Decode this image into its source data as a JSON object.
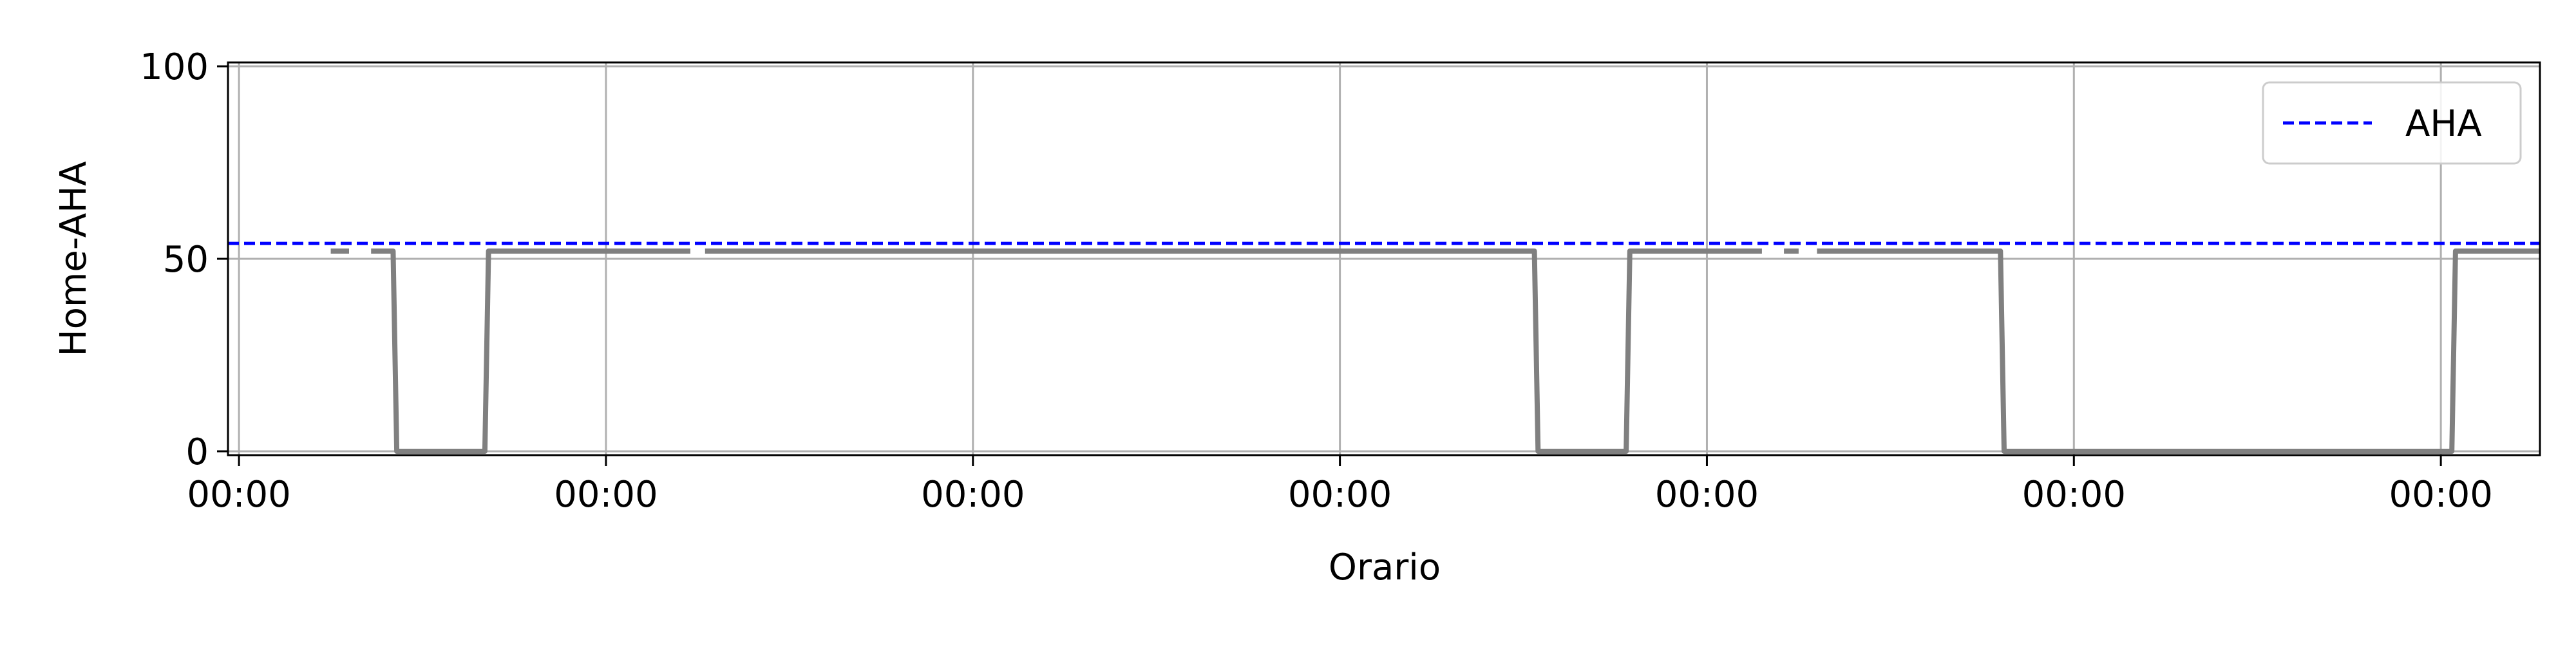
{
  "chart_data": {
    "type": "line",
    "xlabel": "Orario",
    "ylabel": "Home-AHA",
    "x_tick_labels": [
      "00:00",
      "00:00",
      "00:00",
      "00:00",
      "00:00",
      "00:00",
      "00:00"
    ],
    "y_ticks": [
      0,
      50,
      100
    ],
    "xlim": [
      -0.03,
      6.27
    ],
    "ylim": [
      -1,
      101
    ],
    "grid": true,
    "legend": {
      "position": "upper right",
      "entries": [
        "AHA"
      ]
    },
    "reference_lines": [
      {
        "name": "AHA",
        "y": 54,
        "style": "dashed",
        "color": "#0000ff"
      }
    ],
    "series": [
      {
        "color": "#808080",
        "segments": [
          {
            "x": [
              0.25,
              0.3
            ],
            "y": [
              52,
              52
            ]
          },
          {
            "x": [
              0.36,
              0.42,
              0.43,
              0.67,
              0.68,
              1.23
            ],
            "y": [
              52,
              52,
              0,
              0,
              52,
              52
            ]
          },
          {
            "x": [
              1.27,
              3.53,
              3.54,
              3.78,
              3.79,
              4.15
            ],
            "y": [
              52,
              52,
              0,
              0,
              52,
              52
            ]
          },
          {
            "x": [
              4.21,
              4.25
            ],
            "y": [
              52,
              52
            ]
          },
          {
            "x": [
              4.3,
              4.8,
              4.81,
              6.03,
              6.04,
              6.27
            ],
            "y": [
              52,
              52,
              0,
              0,
              52,
              52
            ]
          }
        ]
      }
    ]
  }
}
